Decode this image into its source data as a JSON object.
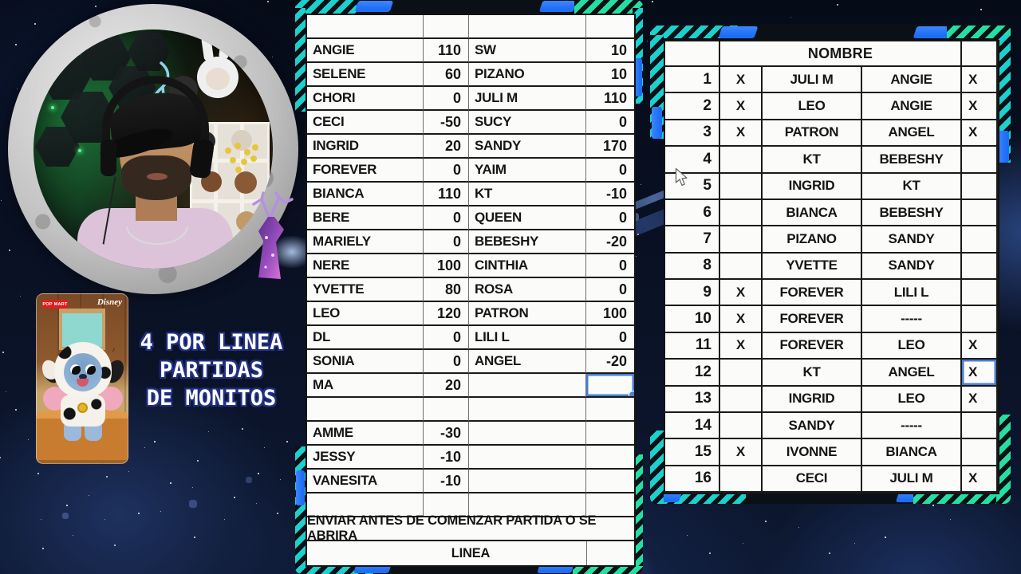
{
  "caption": {
    "line1": "4 POR LINEA",
    "line2": "PARTIDAS",
    "line3": "DE MONITOS"
  },
  "promo": {
    "brand_left": "POP MART",
    "brand_right": "Disney",
    "note": "♪"
  },
  "scores": {
    "rows": [
      {
        "n1": "",
        "v1": "",
        "n2": "",
        "v2": ""
      },
      {
        "n1": "ANGIE",
        "v1": "110",
        "n2": "SW",
        "v2": "10"
      },
      {
        "n1": "SELENE",
        "v1": "60",
        "n2": "PIZANO",
        "v2": "10"
      },
      {
        "n1": "CHORI",
        "v1": "0",
        "n2": "JULI M",
        "v2": "110"
      },
      {
        "n1": "CECI",
        "v1": "-50",
        "n2": "SUCY",
        "v2": "0"
      },
      {
        "n1": "INGRID",
        "v1": "20",
        "n2": "SANDY",
        "v2": "170"
      },
      {
        "n1": "FOREVER",
        "v1": "0",
        "n2": "YAIM",
        "v2": "0"
      },
      {
        "n1": "BIANCA",
        "v1": "110",
        "n2": "KT",
        "v2": "-10"
      },
      {
        "n1": "BERE",
        "v1": "0",
        "n2": "QUEEN",
        "v2": "0"
      },
      {
        "n1": "MARIELY",
        "v1": "0",
        "n2": "BEBESHY",
        "v2": "-20"
      },
      {
        "n1": "NERE",
        "v1": "100",
        "n2": "CINTHIA",
        "v2": "0"
      },
      {
        "n1": "YVETTE",
        "v1": "80",
        "n2": "ROSA",
        "v2": "0"
      },
      {
        "n1": "LEO",
        "v1": "120",
        "n2": "PATRON",
        "v2": "100"
      },
      {
        "n1": "DL",
        "v1": "0",
        "n2": "LILI L",
        "v2": "0"
      },
      {
        "n1": "SONIA",
        "v1": "0",
        "n2": "ANGEL",
        "v2": "-20"
      },
      {
        "n1": "MA",
        "v1": "20",
        "n2": "",
        "v2": ""
      },
      {
        "n1": "",
        "v1": "",
        "n2": "",
        "v2": ""
      },
      {
        "n1": "AMME",
        "v1": "-30",
        "n2": "",
        "v2": ""
      },
      {
        "n1": "JESSY",
        "v1": "-10",
        "n2": "",
        "v2": ""
      },
      {
        "n1": "VANESITA",
        "v1": "-10",
        "n2": "",
        "v2": ""
      },
      {
        "n1": "",
        "v1": "",
        "n2": "",
        "v2": ""
      }
    ],
    "selected": {
      "index": 15,
      "col": "v2"
    },
    "footer1": "ENVIAR ANTES DE COMENZAR PARTIDA O SE ABRIRA",
    "footer2": "LINEA"
  },
  "matches": {
    "header": "NOMBRE",
    "rows": [
      {
        "n": "1",
        "x1": "X",
        "p1": "JULI M",
        "p2": "ANGIE",
        "x2": "X"
      },
      {
        "n": "2",
        "x1": "X",
        "p1": "LEO",
        "p2": "ANGIE",
        "x2": "X"
      },
      {
        "n": "3",
        "x1": "X",
        "p1": "PATRON",
        "p2": "ANGEL",
        "x2": "X"
      },
      {
        "n": "4",
        "x1": "",
        "p1": "KT",
        "p2": "BEBESHY",
        "x2": ""
      },
      {
        "n": "5",
        "x1": "",
        "p1": "INGRID",
        "p2": "KT",
        "x2": ""
      },
      {
        "n": "6",
        "x1": "",
        "p1": "BIANCA",
        "p2": "BEBESHY",
        "x2": ""
      },
      {
        "n": "7",
        "x1": "",
        "p1": "PIZANO",
        "p2": "SANDY",
        "x2": ""
      },
      {
        "n": "8",
        "x1": "",
        "p1": "YVETTE",
        "p2": "SANDY",
        "x2": ""
      },
      {
        "n": "9",
        "x1": "X",
        "p1": "FOREVER",
        "p2": "LILI L",
        "x2": ""
      },
      {
        "n": "10",
        "x1": "X",
        "p1": "FOREVER",
        "p2": "-----",
        "x2": ""
      },
      {
        "n": "11",
        "x1": "X",
        "p1": "FOREVER",
        "p2": "LEO",
        "x2": "X"
      },
      {
        "n": "12",
        "x1": "",
        "p1": "KT",
        "p2": "ANGEL",
        "x2": "X"
      },
      {
        "n": "13",
        "x1": "",
        "p1": "INGRID",
        "p2": "LEO",
        "x2": "X"
      },
      {
        "n": "14",
        "x1": "",
        "p1": "SANDY",
        "p2": "-----",
        "x2": ""
      },
      {
        "n": "15",
        "x1": "X",
        "p1": "IVONNE",
        "p2": "BIANCA",
        "x2": ""
      },
      {
        "n": "16",
        "x1": "",
        "p1": "CECI",
        "p2": "JULI M",
        "x2": "X"
      }
    ],
    "selected": {
      "index": 11,
      "col": "x2"
    }
  },
  "colors": {
    "accent_teal": "#1bd0cd",
    "accent_blue": "#1e6ef5",
    "selection_blue": "#4a7ed2",
    "cell_bg": "#fbfbf9",
    "grid_line": "#1a1a1a",
    "frame_dark": "#0b1016"
  }
}
